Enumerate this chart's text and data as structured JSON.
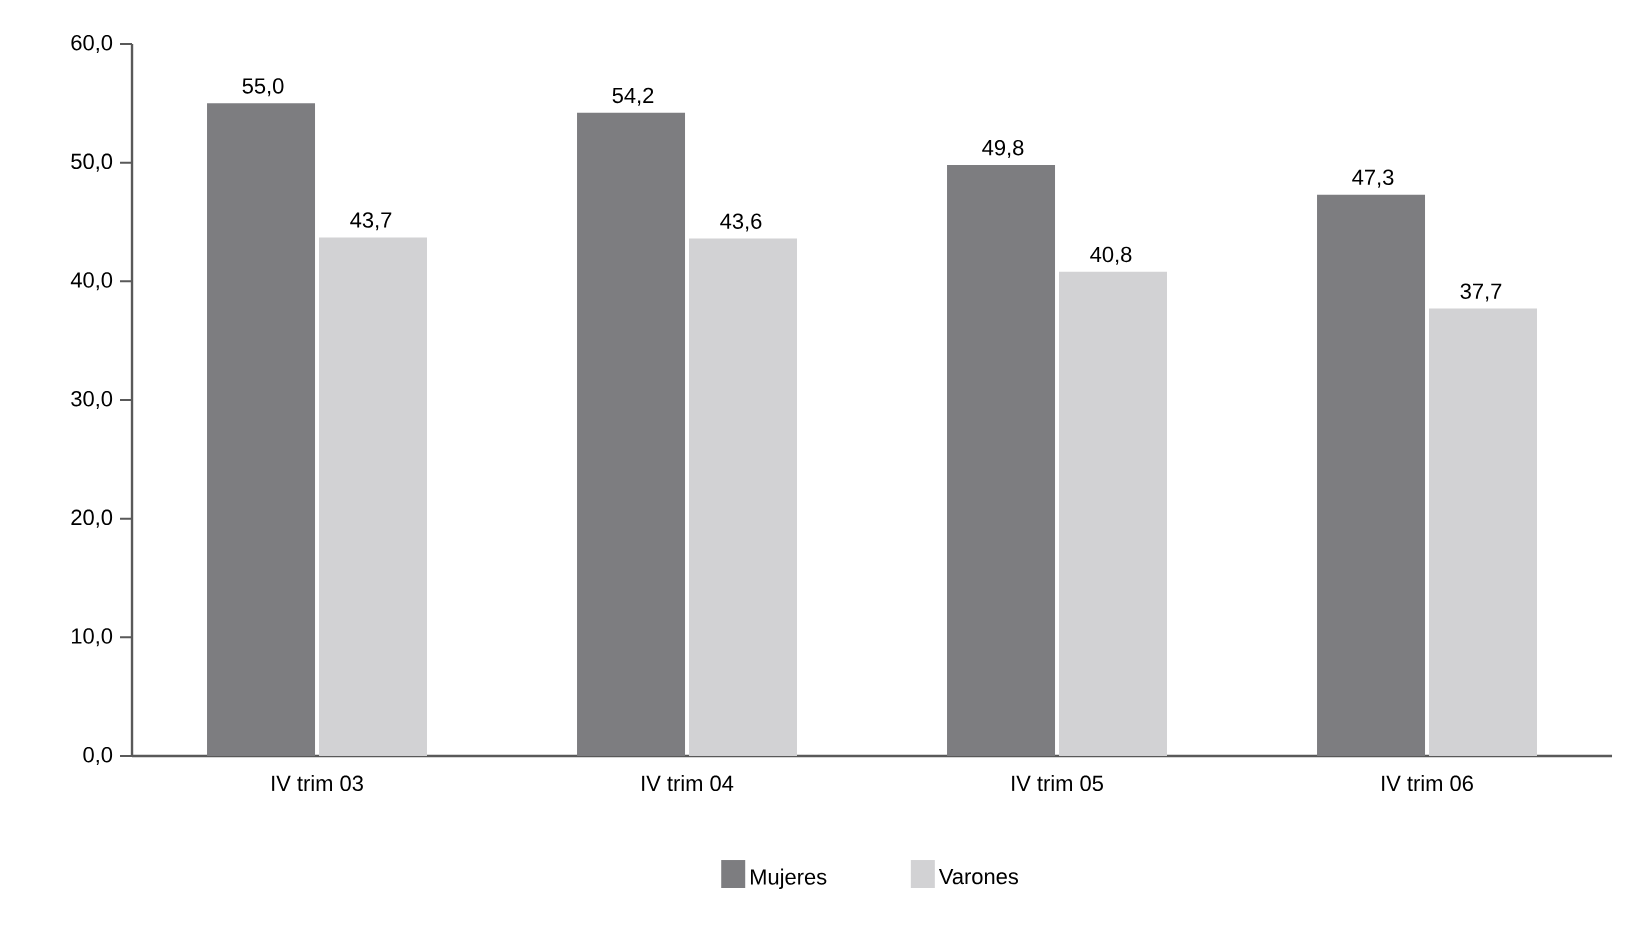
{
  "chart_data": {
    "type": "bar",
    "categories": [
      "IV trim 03",
      "IV trim 04",
      "IV trim 05",
      "IV trim 06"
    ],
    "series": [
      {
        "name": "Mujeres",
        "color": "#7d7d80",
        "values": [
          55.0,
          54.2,
          49.8,
          47.3
        ],
        "value_labels": [
          "55,0",
          "54,2",
          "49,8",
          "47,3"
        ]
      },
      {
        "name": "Varones",
        "color": "#d2d2d4",
        "values": [
          43.7,
          43.6,
          40.8,
          37.7
        ],
        "value_labels": [
          "43,7",
          "43,6",
          "40,8",
          "37,7"
        ]
      }
    ],
    "ylim": [
      0,
      60
    ],
    "yticks": [
      {
        "value": 0,
        "label": "0,0"
      },
      {
        "value": 10,
        "label": "10,0"
      },
      {
        "value": 20,
        "label": "20,0"
      },
      {
        "value": 30,
        "label": "30,0"
      },
      {
        "value": 40,
        "label": "40,0"
      },
      {
        "value": 50,
        "label": "50,0"
      },
      {
        "value": 60,
        "label": "60,0"
      }
    ],
    "grid": false,
    "legend": "bottom"
  }
}
